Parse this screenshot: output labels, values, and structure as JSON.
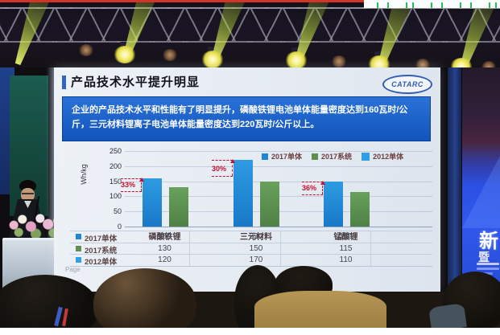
{
  "slide": {
    "title": "产品技术水平提升明显",
    "logo_text": "CATARC",
    "highlight_text": "企业的产品技术水平和性能有了明显提升，磷酸铁锂电池单体能量密度达到160瓦时/公斤，三元材料锂离子电池单体能量密度达到220瓦时/公斤以上。",
    "page_label": "Page"
  },
  "chart_data": {
    "type": "bar",
    "title": "",
    "xlabel": "",
    "ylabel": "Wh/kg",
    "ylim": [
      0,
      250
    ],
    "yticks": [
      0,
      50,
      100,
      150,
      200,
      250
    ],
    "grid": true,
    "legend_position": "top",
    "categories": [
      "磷酸铁锂",
      "三元材料",
      "锰酸锂"
    ],
    "series": [
      {
        "name": "2017单体",
        "color": "#1d86d6",
        "values": [
          160,
          220,
          150
        ]
      },
      {
        "name": "2017系统",
        "color": "#5e9050",
        "values": [
          130,
          150,
          115
        ]
      },
      {
        "name": "2012单体",
        "color": "#2f9fe8",
        "values": [
          120,
          170,
          110
        ]
      }
    ],
    "visible_bar_series": [
      "2017单体",
      "2017系统"
    ],
    "annotations": [
      {
        "category": "磷酸铁锂",
        "label": "33%"
      },
      {
        "category": "三元材料",
        "label": "30%"
      },
      {
        "category": "锰酸锂",
        "label": "36%"
      }
    ],
    "table": {
      "rows": [
        {
          "label": "2017单体",
          "values": [
            "160",
            "220",
            "150"
          ]
        },
        {
          "label": "2017系统",
          "values": [
            "130",
            "150",
            "115"
          ]
        },
        {
          "label": "2012单体",
          "values": [
            "120",
            "170",
            "110"
          ]
        }
      ]
    }
  },
  "stage": {
    "banner_char_1": "新",
    "banner_char_2": "暨"
  },
  "colors": {
    "accent_blue": "#1d86d6",
    "accent_green": "#5e9050",
    "annotation_red": "#c8102e",
    "banner_blue": "#2b4fe2",
    "beam_green": "#cde84a"
  }
}
